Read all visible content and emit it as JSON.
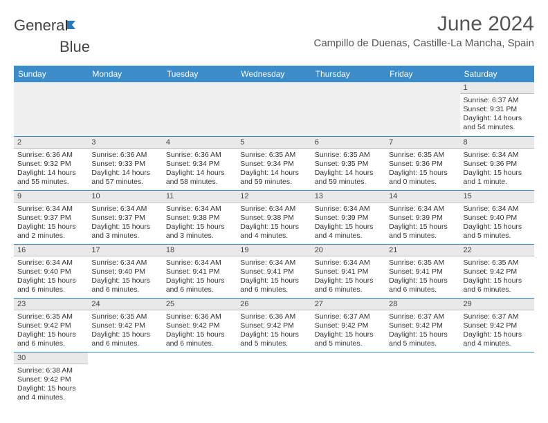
{
  "brand": {
    "part1": "Genera",
    "part2": "Blue"
  },
  "title": "June 2024",
  "location": "Campillo de Duenas, Castille-La Mancha, Spain",
  "headers": [
    "Sunday",
    "Monday",
    "Tuesday",
    "Wednesday",
    "Thursday",
    "Friday",
    "Saturday"
  ],
  "colors": {
    "header_bg": "#3b8cc8",
    "header_fg": "#ffffff",
    "daynum_bg": "#e9e9e9",
    "row_divider": "#3b8cc8",
    "brand_blue": "#2a7ab9"
  },
  "weeks": [
    [
      null,
      null,
      null,
      null,
      null,
      null,
      {
        "n": "1",
        "sr": "6:37 AM",
        "ss": "9:31 PM",
        "dl": "14 hours and 54 minutes."
      }
    ],
    [
      {
        "n": "2",
        "sr": "6:36 AM",
        "ss": "9:32 PM",
        "dl": "14 hours and 55 minutes."
      },
      {
        "n": "3",
        "sr": "6:36 AM",
        "ss": "9:33 PM",
        "dl": "14 hours and 57 minutes."
      },
      {
        "n": "4",
        "sr": "6:36 AM",
        "ss": "9:34 PM",
        "dl": "14 hours and 58 minutes."
      },
      {
        "n": "5",
        "sr": "6:35 AM",
        "ss": "9:34 PM",
        "dl": "14 hours and 59 minutes."
      },
      {
        "n": "6",
        "sr": "6:35 AM",
        "ss": "9:35 PM",
        "dl": "14 hours and 59 minutes."
      },
      {
        "n": "7",
        "sr": "6:35 AM",
        "ss": "9:36 PM",
        "dl": "15 hours and 0 minutes."
      },
      {
        "n": "8",
        "sr": "6:34 AM",
        "ss": "9:36 PM",
        "dl": "15 hours and 1 minute."
      }
    ],
    [
      {
        "n": "9",
        "sr": "6:34 AM",
        "ss": "9:37 PM",
        "dl": "15 hours and 2 minutes."
      },
      {
        "n": "10",
        "sr": "6:34 AM",
        "ss": "9:37 PM",
        "dl": "15 hours and 3 minutes."
      },
      {
        "n": "11",
        "sr": "6:34 AM",
        "ss": "9:38 PM",
        "dl": "15 hours and 3 minutes."
      },
      {
        "n": "12",
        "sr": "6:34 AM",
        "ss": "9:38 PM",
        "dl": "15 hours and 4 minutes."
      },
      {
        "n": "13",
        "sr": "6:34 AM",
        "ss": "9:39 PM",
        "dl": "15 hours and 4 minutes."
      },
      {
        "n": "14",
        "sr": "6:34 AM",
        "ss": "9:39 PM",
        "dl": "15 hours and 5 minutes."
      },
      {
        "n": "15",
        "sr": "6:34 AM",
        "ss": "9:40 PM",
        "dl": "15 hours and 5 minutes."
      }
    ],
    [
      {
        "n": "16",
        "sr": "6:34 AM",
        "ss": "9:40 PM",
        "dl": "15 hours and 6 minutes."
      },
      {
        "n": "17",
        "sr": "6:34 AM",
        "ss": "9:40 PM",
        "dl": "15 hours and 6 minutes."
      },
      {
        "n": "18",
        "sr": "6:34 AM",
        "ss": "9:41 PM",
        "dl": "15 hours and 6 minutes."
      },
      {
        "n": "19",
        "sr": "6:34 AM",
        "ss": "9:41 PM",
        "dl": "15 hours and 6 minutes."
      },
      {
        "n": "20",
        "sr": "6:34 AM",
        "ss": "9:41 PM",
        "dl": "15 hours and 6 minutes."
      },
      {
        "n": "21",
        "sr": "6:35 AM",
        "ss": "9:41 PM",
        "dl": "15 hours and 6 minutes."
      },
      {
        "n": "22",
        "sr": "6:35 AM",
        "ss": "9:42 PM",
        "dl": "15 hours and 6 minutes."
      }
    ],
    [
      {
        "n": "23",
        "sr": "6:35 AM",
        "ss": "9:42 PM",
        "dl": "15 hours and 6 minutes."
      },
      {
        "n": "24",
        "sr": "6:35 AM",
        "ss": "9:42 PM",
        "dl": "15 hours and 6 minutes."
      },
      {
        "n": "25",
        "sr": "6:36 AM",
        "ss": "9:42 PM",
        "dl": "15 hours and 6 minutes."
      },
      {
        "n": "26",
        "sr": "6:36 AM",
        "ss": "9:42 PM",
        "dl": "15 hours and 5 minutes."
      },
      {
        "n": "27",
        "sr": "6:37 AM",
        "ss": "9:42 PM",
        "dl": "15 hours and 5 minutes."
      },
      {
        "n": "28",
        "sr": "6:37 AM",
        "ss": "9:42 PM",
        "dl": "15 hours and 5 minutes."
      },
      {
        "n": "29",
        "sr": "6:37 AM",
        "ss": "9:42 PM",
        "dl": "15 hours and 4 minutes."
      }
    ],
    [
      {
        "n": "30",
        "sr": "6:38 AM",
        "ss": "9:42 PM",
        "dl": "15 hours and 4 minutes."
      },
      null,
      null,
      null,
      null,
      null,
      null
    ]
  ]
}
